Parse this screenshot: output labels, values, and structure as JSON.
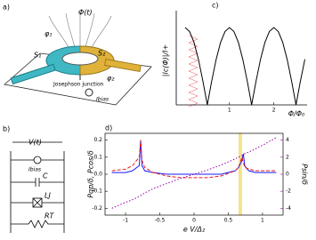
{
  "panel_a": {
    "label": "a)",
    "flux": "Φ(t)",
    "phi1": "φ₁",
    "s1": "S₁",
    "s2": "S₂",
    "phi2": "φ₂",
    "junction": "Josephson junction",
    "bias": "Ibias"
  },
  "panel_b": {
    "label": "b)",
    "voltage": "V(t)",
    "bias": "Ibias",
    "cap": "C",
    "ind": "LJ",
    "res": "RT"
  },
  "chart_data": [
    {
      "type": "line",
      "panel": "c)",
      "xlabel": "Φ/Φ₀",
      "ylabel": "|Ic(Φ)|/I+",
      "x": [
        0,
        0.1,
        0.2,
        0.3,
        0.4,
        0.5,
        0.6,
        0.7,
        0.8,
        0.9,
        1.0,
        1.1,
        1.2,
        1.3,
        1.4,
        1.5,
        1.6,
        1.7,
        1.8,
        1.9,
        2.0,
        2.1,
        2.2,
        2.3,
        2.4,
        2.5,
        2.6,
        2.7
      ],
      "series": [
        {
          "color": "#000000",
          "values": [
            1,
            0.95,
            0.81,
            0.59,
            0.31,
            0,
            0.31,
            0.59,
            0.81,
            0.95,
            1,
            0.95,
            0.81,
            0.59,
            0.31,
            0,
            0.31,
            0.59,
            0.81,
            0.95,
            1,
            0.95,
            0.81,
            0.59,
            0.31,
            0,
            0.31,
            0.59
          ]
        }
      ],
      "xlim": [
        -0.2,
        2.75
      ],
      "ylim": [
        0,
        1.15
      ],
      "xticks": [
        1,
        2
      ]
    },
    {
      "type": "line",
      "panel": "d)",
      "xlabel": "e V/Δ₂",
      "ylabel": "Pqp/δ, Pcos/δ",
      "y2label": "Psin/δ",
      "x": [
        -1.2,
        -1.0,
        -0.9,
        -0.8,
        -0.78,
        -0.76,
        -0.72,
        -0.6,
        -0.4,
        -0.2,
        0,
        0.2,
        0.4,
        0.6,
        0.65,
        0.7,
        0.72,
        0.74,
        0.8,
        0.9,
        1.0,
        1.2
      ],
      "series": [
        {
          "color": "#1a1aff",
          "dash": "none",
          "values": [
            0.01,
            0.01,
            0.02,
            0.05,
            0.2,
            0.05,
            0.02,
            0.01,
            0,
            0,
            0,
            0,
            0,
            0.02,
            0.04,
            0.08,
            0.12,
            0.05,
            0.02,
            0.01,
            0.01,
            0.01
          ]
        },
        {
          "color": "#e81919",
          "dash": "4 2",
          "values": [
            0.02,
            0.03,
            0.05,
            0.1,
            0.2,
            0.08,
            0.04,
            0.01,
            -0.01,
            -0.02,
            -0.02,
            -0.02,
            -0.01,
            0.02,
            0.04,
            0.1,
            0.07,
            0.04,
            0.03,
            0.02,
            0.02,
            0.02
          ]
        },
        {
          "color": "#9900aa",
          "dash": "1.5 2",
          "axis": "y2",
          "values": [
            -4,
            -3.3,
            -3,
            -2.6,
            -2.5,
            -2.4,
            -2.2,
            -1.7,
            -1.1,
            -0.5,
            0,
            0.5,
            1.1,
            1.8,
            2,
            2.2,
            2.3,
            2.4,
            2.6,
            3,
            3.4,
            4.3
          ]
        }
      ],
      "highlight": [
        0.65,
        0.7
      ],
      "highlight_color": "#f3e38a",
      "xlim": [
        -1.3,
        1.3
      ],
      "ylim": [
        -0.24,
        0.24
      ],
      "y2lim": [
        -4.8,
        4.8
      ],
      "xticks": [
        -1,
        -0.5,
        0,
        0.5,
        1
      ],
      "yticks": [
        -0.2,
        -0.1,
        {
          "value": 0,
          "label": "0.0"
        },
        0.1,
        0.2
      ],
      "y2ticks": [
        -4,
        -2,
        0,
        2,
        4
      ]
    }
  ]
}
